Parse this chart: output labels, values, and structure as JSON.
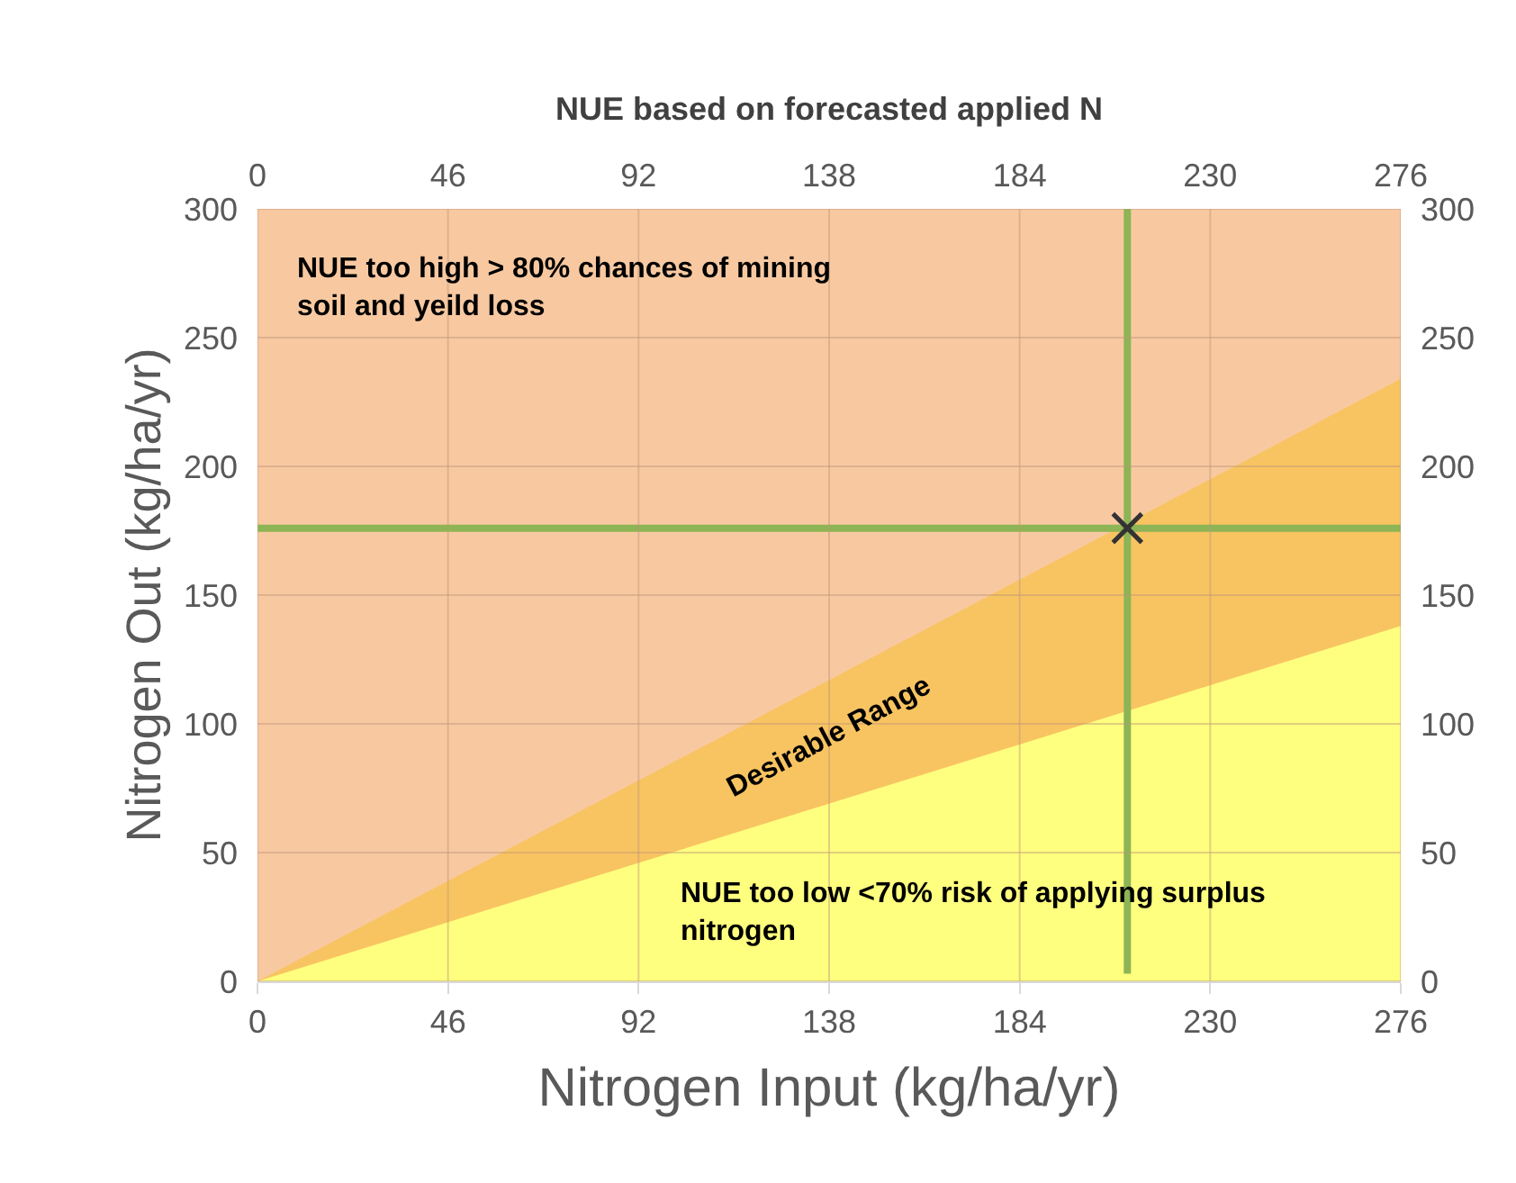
{
  "chart_data": {
    "type": "area",
    "xlabel": "Nitrogen Input (kg/ha/yr)",
    "ylabel": "Nitrogen Out (kg/ha/yr)",
    "x2label": "NUE based on forecasted applied N",
    "x": [
      0,
      276
    ],
    "series": [
      {
        "color": "#f8c9a1",
        "values": [
          300,
          300
        ]
      },
      {
        "color": "#f8c462",
        "values": [
          0,
          234
        ]
      },
      {
        "color": "#ffff7f",
        "values": [
          0,
          138
        ]
      },
      {
        "type": "line",
        "color": "#8db455",
        "x": [
          0,
          276
        ],
        "values": [
          176,
          176
        ]
      },
      {
        "type": "line",
        "color": "#8db455",
        "x": [
          210,
          210
        ],
        "values": [
          3,
          300
        ]
      },
      {
        "type": "scatter",
        "color": "#333333",
        "marker": "cross",
        "x": [
          210
        ],
        "values": [
          176
        ]
      }
    ],
    "xlim": [
      0,
      276
    ],
    "xticks": [
      0,
      46,
      92,
      138,
      184,
      230,
      276
    ],
    "x2lim": [
      0,
      276
    ],
    "x2ticks": [
      0,
      46,
      92,
      138,
      184,
      230,
      276
    ],
    "ylim": [
      0,
      300
    ],
    "yticks": [
      0,
      50,
      100,
      150,
      200,
      250,
      300
    ],
    "y2lim": [
      0,
      300
    ],
    "y2ticks": [
      0,
      50,
      100,
      150,
      200,
      250,
      300
    ],
    "grid": true,
    "annotations": [
      "NUE too high > 80% chances of mining\nsoil and yeild loss",
      "Desirable Range",
      "NUE too low <70% risk of applying surplus\nnitrogen"
    ]
  }
}
